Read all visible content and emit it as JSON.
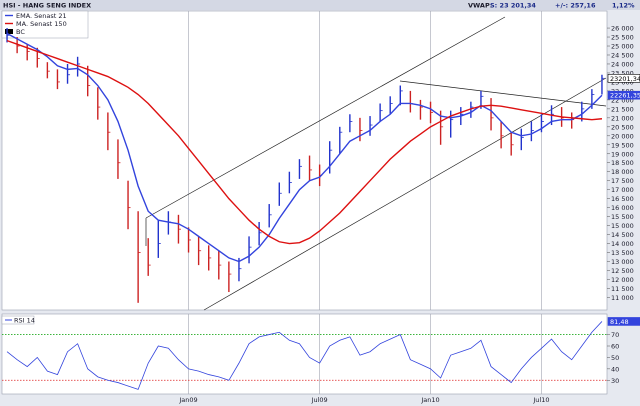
{
  "chart_data": [
    {
      "type": "candlestick",
      "title": "HSI - HANG SENG INDEX",
      "quote": [
        "VWAP:",
        "S: 23 201,34",
        "+/-: 257,16",
        "1,12%"
      ],
      "ylim": [
        10300,
        26950
      ],
      "yticks": [
        {
          "value": 11000,
          "label": "11 000"
        },
        {
          "value": 11500,
          "label": "11 500"
        },
        {
          "value": 12000,
          "label": "12 000"
        },
        {
          "value": 12500,
          "label": "12 500"
        },
        {
          "value": 13000,
          "label": "13 000"
        },
        {
          "value": 13500,
          "label": "13 500"
        },
        {
          "value": 14000,
          "label": "14 000"
        },
        {
          "value": 14500,
          "label": "14 500"
        },
        {
          "value": 15000,
          "label": "15 000"
        },
        {
          "value": 15500,
          "label": "15 500"
        },
        {
          "value": 16000,
          "label": "16 000"
        },
        {
          "value": 16500,
          "label": "16 500"
        },
        {
          "value": 17000,
          "label": "17 000"
        },
        {
          "value": 17500,
          "label": "17 500"
        },
        {
          "value": 18000,
          "label": "18 000"
        },
        {
          "value": 18500,
          "label": "18 500"
        },
        {
          "value": 19000,
          "label": "19 000"
        },
        {
          "value": 19500,
          "label": "19 500"
        },
        {
          "value": 20000,
          "label": "20 000"
        },
        {
          "value": 20500,
          "label": "20 500"
        },
        {
          "value": 21000,
          "label": "21 000"
        },
        {
          "value": 21500,
          "label": "21 500"
        },
        {
          "value": 22000,
          "label": "22 000"
        },
        {
          "value": 22500,
          "label": "22 500"
        },
        {
          "value": 23000,
          "label": "23 000"
        },
        {
          "value": 23500,
          "label": "23 500"
        },
        {
          "value": 24000,
          "label": "24 000"
        },
        {
          "value": 24500,
          "label": "24 500"
        },
        {
          "value": 25000,
          "label": "25 000"
        },
        {
          "value": 25500,
          "label": "25 500"
        },
        {
          "value": 26000,
          "label": "26 000"
        }
      ],
      "price": {
        "name": "BC",
        "color": "#000000",
        "up_color": "#2233cc",
        "down_color": "#cc2222",
        "high": [
          26000,
          25500,
          25100,
          24900,
          24100,
          23700,
          24000,
          24400,
          23900,
          22700,
          21300,
          19800,
          17500,
          15800,
          14300,
          15300,
          15800,
          15600,
          14900,
          14400,
          13900,
          13600,
          13000,
          13200,
          14400,
          15200,
          16200,
          17400,
          18000,
          18700,
          18900,
          18400,
          19700,
          20500,
          21200,
          21000,
          21100,
          21800,
          22200,
          22800,
          22500,
          22000,
          21900,
          21400,
          21400,
          21600,
          21900,
          22500,
          22100,
          20800,
          20200,
          20400,
          20800,
          21200,
          21700,
          21600,
          21300,
          21900,
          22600,
          23400
        ],
        "low": [
          25200,
          24600,
          24200,
          23800,
          23200,
          22600,
          22900,
          23300,
          22200,
          20900,
          19200,
          17600,
          14800,
          10700,
          12200,
          13200,
          14500,
          14000,
          13500,
          12800,
          12500,
          12000,
          11300,
          11900,
          12900,
          13900,
          14900,
          16100,
          16800,
          17600,
          17500,
          17200,
          17900,
          19000,
          20200,
          19700,
          20000,
          20800,
          21200,
          21700,
          21300,
          20900,
          20700,
          19500,
          19900,
          20600,
          21000,
          21500,
          20300,
          19300,
          18900,
          19200,
          19700,
          20200,
          20600,
          20500,
          20400,
          20800,
          21500,
          22300
        ],
        "close": [
          25600,
          25000,
          24700,
          24300,
          23600,
          23000,
          23400,
          24000,
          22800,
          21600,
          20200,
          18500,
          16000,
          13500,
          12800,
          14000,
          15200,
          14800,
          14200,
          13600,
          13200,
          12800,
          12300,
          12600,
          13800,
          14600,
          15600,
          16800,
          17400,
          18300,
          18100,
          17800,
          19200,
          20200,
          20800,
          20300,
          20600,
          21400,
          21800,
          22500,
          21800,
          21600,
          21300,
          20500,
          20900,
          21200,
          21600,
          22200,
          21000,
          20000,
          19500,
          19900,
          20300,
          20800,
          21200,
          21000,
          20900,
          21500,
          22300,
          23201.34
        ]
      },
      "series": [
        {
          "name": "EMA. Senast 21",
          "color": "#3344dd",
          "values": [
            25700,
            25400,
            25100,
            24800,
            24400,
            23900,
            23700,
            23750,
            23400,
            22800,
            22000,
            20800,
            19200,
            17200,
            15800,
            15300,
            15200,
            15100,
            14800,
            14400,
            14000,
            13600,
            13200,
            13000,
            13300,
            13800,
            14500,
            15400,
            16200,
            17000,
            17500,
            17700,
            18300,
            19000,
            19700,
            20000,
            20300,
            20800,
            21200,
            21800,
            21800,
            21700,
            21500,
            21100,
            21000,
            21100,
            21300,
            21700,
            21400,
            20800,
            20200,
            20000,
            20100,
            20400,
            20800,
            20900,
            20900,
            21200,
            21700,
            22261.35
          ]
        },
        {
          "name": "MA. Senast 150",
          "color": "#dd1111",
          "values": [
            25300,
            25100,
            24900,
            24700,
            24500,
            24300,
            24100,
            23900,
            23700,
            23500,
            23300,
            23000,
            22700,
            22300,
            21800,
            21200,
            20600,
            20000,
            19300,
            18600,
            17900,
            17200,
            16500,
            15900,
            15300,
            14800,
            14400,
            14100,
            14000,
            14050,
            14300,
            14700,
            15200,
            15700,
            16300,
            16900,
            17500,
            18100,
            18700,
            19200,
            19700,
            20100,
            20500,
            20800,
            21100,
            21300,
            21500,
            21650,
            21700,
            21650,
            21550,
            21450,
            21350,
            21250,
            21150,
            21050,
            21000,
            20950,
            20900,
            20950
          ]
        }
      ],
      "last_labels": [
        {
          "value": 23201.34,
          "label": "23201,34",
          "color": "#000000"
        },
        {
          "value": 22261.35,
          "label": "22261,35",
          "color": "#3344dd"
        }
      ]
    },
    {
      "type": "line",
      "title": "RSI 14",
      "categories": [
        null,
        null,
        null,
        null,
        null,
        null,
        null,
        null,
        null,
        null,
        null,
        null,
        null,
        null,
        null,
        null,
        null,
        null,
        "Jan09",
        null,
        null,
        null,
        null,
        null,
        null,
        null,
        null,
        null,
        null,
        null,
        null,
        "Jul09",
        null,
        null,
        null,
        null,
        null,
        null,
        null,
        null,
        null,
        null,
        "Jan10",
        null,
        null,
        null,
        null,
        null,
        null,
        null,
        null,
        null,
        null,
        "Jul10",
        null,
        null,
        null,
        null,
        null,
        null
      ],
      "ylim": [
        18,
        88
      ],
      "yticks": [
        30,
        40,
        50,
        60,
        70
      ],
      "levels": [
        {
          "value": 70,
          "color": "#22aa22"
        },
        {
          "value": 30,
          "color": "#dd2222"
        }
      ],
      "series": [
        {
          "color": "#3344dd",
          "values": [
            55,
            48,
            42,
            50,
            38,
            35,
            55,
            62,
            40,
            33,
            30,
            28,
            25,
            22,
            45,
            60,
            58,
            48,
            40,
            38,
            35,
            33,
            30,
            45,
            62,
            68,
            70,
            72,
            65,
            62,
            50,
            45,
            60,
            65,
            68,
            52,
            55,
            62,
            66,
            70,
            48,
            44,
            40,
            32,
            52,
            55,
            58,
            65,
            42,
            35,
            28,
            40,
            50,
            58,
            66,
            55,
            48,
            60,
            72,
            81.48
          ]
        }
      ],
      "last_labels": [
        {
          "value": 81.48,
          "label": "81,48",
          "color": "#3344dd"
        }
      ]
    }
  ]
}
